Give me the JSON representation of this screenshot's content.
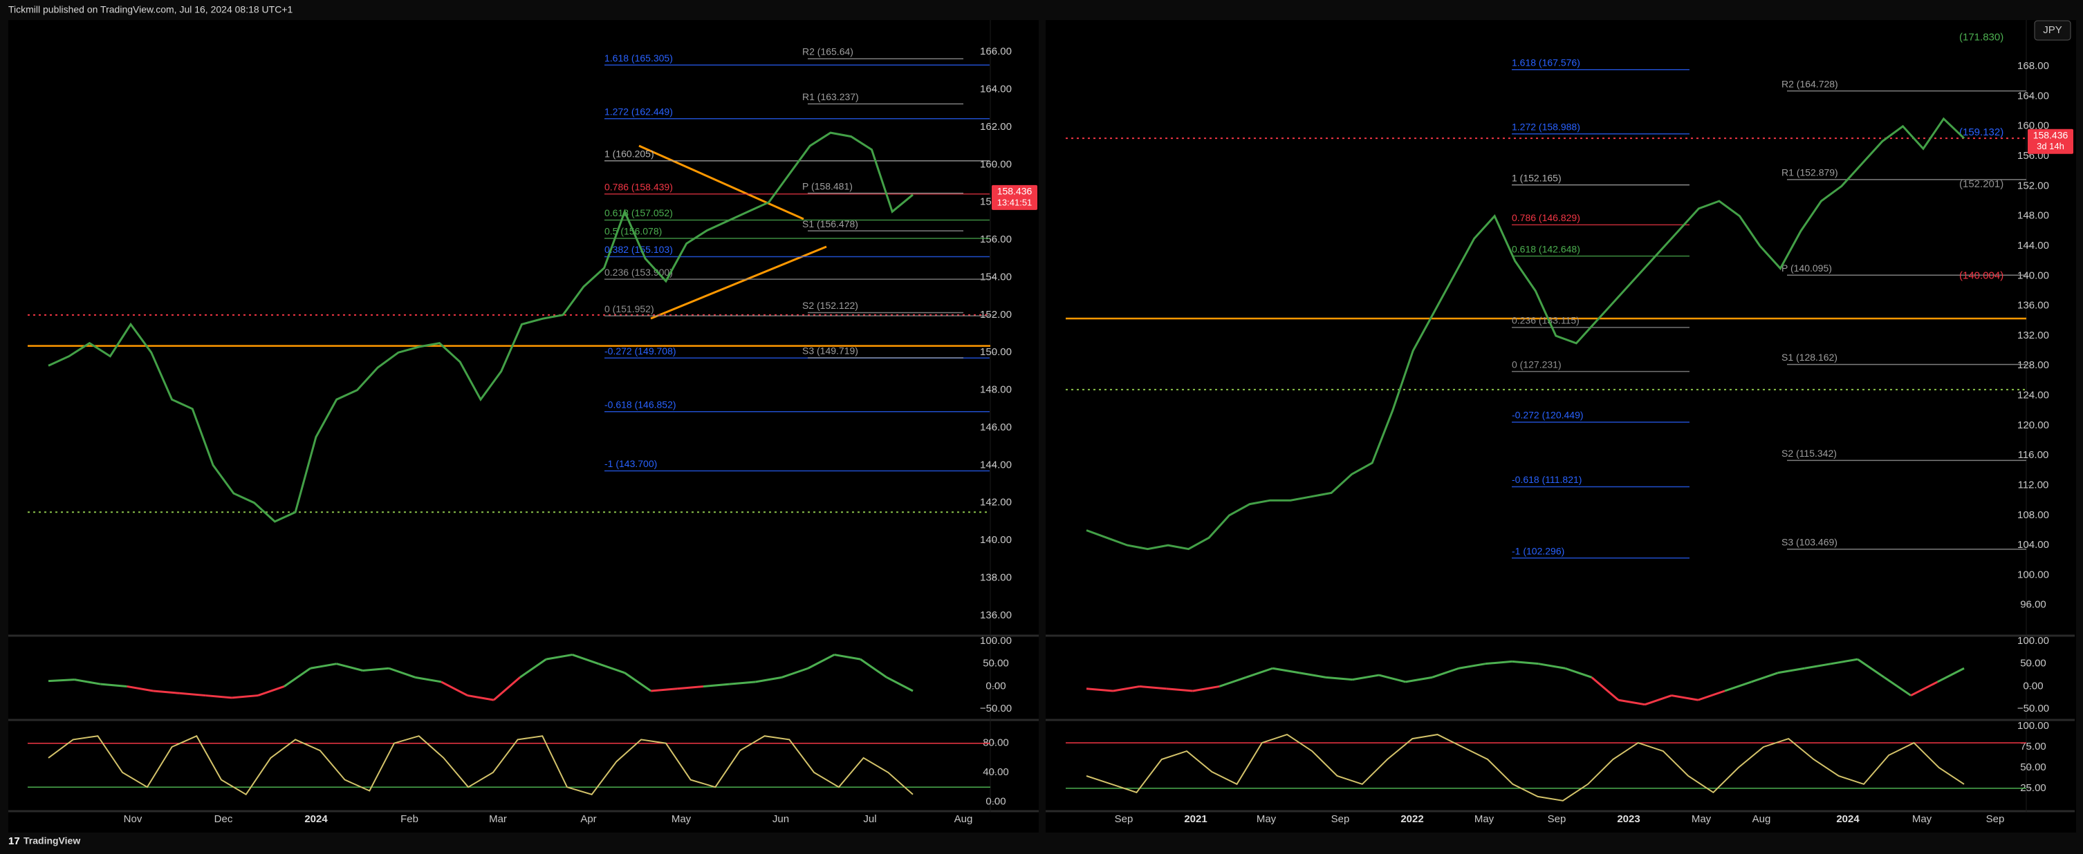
{
  "header": {
    "title": "Tickmill published on TradingView.com, Jul 16, 2024 08:18 UTC+1"
  },
  "footer": {
    "brand": "TradingView"
  },
  "currency": "JPY",
  "panes": [
    {
      "type": "line",
      "price": {
        "ylim": [
          135,
          167.7
        ],
        "yticks": [
          {
            "value": 166,
            "label": "166.00"
          },
          {
            "value": 164,
            "label": "164.00"
          },
          {
            "value": 162,
            "label": "162.00"
          },
          {
            "value": 160,
            "label": "160.00"
          },
          {
            "value": 158,
            "label": "158.00"
          },
          {
            "value": 156,
            "label": "156.00"
          },
          {
            "value": 154,
            "label": "154.00"
          },
          {
            "value": 152,
            "label": "152.00"
          },
          {
            "value": 150,
            "label": "150.00"
          },
          {
            "value": 148,
            "label": "148.00"
          },
          {
            "value": 146,
            "label": "146.00"
          },
          {
            "value": 144,
            "label": "144.00"
          },
          {
            "value": 142,
            "label": "142.00"
          },
          {
            "value": 140,
            "label": "140.00"
          },
          {
            "value": 138,
            "label": "138.00"
          },
          {
            "value": 136,
            "label": "136.00"
          }
        ],
        "color": "#43a047",
        "values": [
          149.3,
          149.8,
          150.5,
          149.8,
          151.5,
          150.0,
          147.5,
          147.0,
          144.0,
          142.5,
          142.0,
          141.0,
          141.5,
          145.5,
          147.5,
          148.0,
          149.2,
          150.0,
          150.3,
          150.5,
          149.5,
          147.5,
          149.0,
          151.5,
          151.8,
          152.0,
          153.5,
          154.5,
          157.5,
          155.0,
          153.8,
          155.8,
          156.5,
          157.0,
          157.5,
          158.0,
          159.5,
          161.0,
          161.7,
          161.5,
          160.8,
          157.5,
          158.4
        ]
      },
      "current": {
        "value": 158.436,
        "countdown": "13:41:51"
      },
      "levels": [
        {
          "kind": "fib",
          "label": "1.618 (165.305)",
          "value": 165.305,
          "color": "#2962ff"
        },
        {
          "kind": "fib",
          "label": "1.272 (162.449)",
          "value": 162.449,
          "color": "#2962ff"
        },
        {
          "kind": "fib",
          "label": "1 (160.205)",
          "value": 160.205,
          "color": "#b0b0b0"
        },
        {
          "kind": "fib",
          "label": "0.786 (158.439)",
          "value": 158.439,
          "color": "#f23645"
        },
        {
          "kind": "fib",
          "label": "0.618 (157.052)",
          "value": 157.052,
          "color": "#4caf50"
        },
        {
          "kind": "fib",
          "label": "0.5 (156.078)",
          "value": 156.078,
          "color": "#4caf50"
        },
        {
          "kind": "fib",
          "label": "0.382 (155.103)",
          "value": 155.103,
          "color": "#2962ff"
        },
        {
          "kind": "fib",
          "label": "0.236 (153.900)",
          "value": 153.9,
          "color": "#909090"
        },
        {
          "kind": "fib",
          "label": "0 (151.952)",
          "value": 151.952,
          "color": "#909090"
        },
        {
          "kind": "fib",
          "label": "-0.272 (149.708)",
          "value": 149.708,
          "color": "#2962ff"
        },
        {
          "kind": "fib",
          "label": "-0.618 (146.852)",
          "value": 146.852,
          "color": "#2962ff"
        },
        {
          "kind": "fib",
          "label": "-1 (143.700)",
          "value": 143.7,
          "color": "#2962ff"
        },
        {
          "kind": "pivot",
          "label": "R2 (165.64)",
          "value": 165.64,
          "color": "#9e9e9e"
        },
        {
          "kind": "pivot",
          "label": "R1 (163.237)",
          "value": 163.237,
          "color": "#9e9e9e"
        },
        {
          "kind": "pivot",
          "label": "P (158.481)",
          "value": 158.481,
          "color": "#9e9e9e"
        },
        {
          "kind": "pivot",
          "label": "S1 (156.478)",
          "value": 156.478,
          "color": "#9e9e9e"
        },
        {
          "kind": "pivot",
          "label": "S2 (152.122)",
          "value": 152.122,
          "color": "#9e9e9e"
        },
        {
          "kind": "pivot",
          "label": "S3 (149.719)",
          "value": 149.719,
          "color": "#9e9e9e"
        }
      ],
      "hlines": [
        {
          "value": 150.35,
          "color": "#ff9800",
          "style": "solid"
        },
        {
          "value": 152.0,
          "color": "#f23645",
          "style": "dotted"
        },
        {
          "value": 141.5,
          "color": "#8bc34a",
          "style": "dotted"
        }
      ],
      "osc1": {
        "ylim": [
          -71,
          109
        ],
        "yticks": [
          {
            "value": 100,
            "label": "100.00"
          },
          {
            "value": 50,
            "label": "50.00"
          },
          {
            "value": 0,
            "label": "0.00"
          },
          {
            "value": -50,
            "label": "−50.00"
          }
        ],
        "up_color": "#4caf50",
        "down_color": "#f23645",
        "values": [
          12,
          15,
          5,
          0,
          -10,
          -15,
          -20,
          -25,
          -20,
          0,
          40,
          50,
          35,
          40,
          20,
          10,
          -20,
          -30,
          20,
          60,
          70,
          50,
          30,
          -10,
          -5,
          0,
          5,
          10,
          20,
          40,
          70,
          60,
          20,
          -10
        ]
      },
      "osc2": {
        "ylim": [
          -11,
          110
        ],
        "yticks": [
          {
            "value": 80,
            "label": "80.00"
          },
          {
            "value": 40,
            "label": "40.00"
          },
          {
            "value": 0,
            "label": "0.00"
          }
        ],
        "color": "#d4c36a",
        "levels": [
          {
            "value": 80,
            "color": "#f23645"
          },
          {
            "value": 20,
            "color": "#4caf50"
          }
        ],
        "values": [
          60,
          85,
          90,
          40,
          20,
          75,
          90,
          30,
          10,
          60,
          85,
          70,
          30,
          15,
          80,
          90,
          60,
          20,
          40,
          85,
          90,
          20,
          10,
          55,
          85,
          80,
          30,
          20,
          70,
          90,
          85,
          40,
          20,
          60,
          40,
          10
        ]
      },
      "time_labels": [
        "Nov",
        "Dec",
        "2024",
        "Feb",
        "Mar",
        "Apr",
        "May",
        "Jun",
        "Jul",
        "Aug"
      ]
    },
    {
      "type": "line",
      "price": {
        "ylim": [
          92.1,
          174.2
        ],
        "yticks": [
          {
            "value": 168,
            "label": "168.00"
          },
          {
            "value": 164,
            "label": "164.00"
          },
          {
            "value": 160,
            "label": "160.00"
          },
          {
            "value": 156,
            "label": "156.00"
          },
          {
            "value": 152,
            "label": "152.00"
          },
          {
            "value": 148,
            "label": "148.00"
          },
          {
            "value": 144,
            "label": "144.00"
          },
          {
            "value": 140,
            "label": "140.00"
          },
          {
            "value": 136,
            "label": "136.00"
          },
          {
            "value": 132,
            "label": "132.00"
          },
          {
            "value": 128,
            "label": "128.00"
          },
          {
            "value": 124,
            "label": "124.00"
          },
          {
            "value": 120,
            "label": "120.00"
          },
          {
            "value": 116,
            "label": "116.00"
          },
          {
            "value": 112,
            "label": "112.00"
          },
          {
            "value": 108,
            "label": "108.00"
          },
          {
            "value": 104,
            "label": "104.00"
          },
          {
            "value": 100,
            "label": "100.00"
          },
          {
            "value": 96,
            "label": "96.00"
          }
        ],
        "color": "#43a047",
        "values": [
          106,
          105,
          104,
          103.5,
          104,
          103.5,
          105,
          108,
          109.5,
          110,
          110,
          110.5,
          111,
          113.5,
          115,
          122,
          130,
          135,
          140,
          145,
          148,
          142,
          138,
          132,
          131,
          134,
          137,
          140,
          143,
          146,
          149,
          150,
          148,
          144,
          141,
          146,
          150,
          152,
          155,
          158,
          160,
          157,
          161,
          158.4
        ]
      },
      "current": {
        "value": 158.436,
        "countdown": "3d 14h"
      },
      "levels": [
        {
          "kind": "fib",
          "label": "1.618 (167.576)",
          "value": 167.576,
          "color": "#2962ff"
        },
        {
          "kind": "fib",
          "label": "1.272 (158.988)",
          "value": 158.988,
          "color": "#2962ff"
        },
        {
          "kind": "fib",
          "label": "1 (152.165)",
          "value": 152.165,
          "color": "#b0b0b0"
        },
        {
          "kind": "fib",
          "label": "0.786 (146.829)",
          "value": 146.829,
          "color": "#f23645"
        },
        {
          "kind": "fib",
          "label": "0.618 (142.648)",
          "value": 142.648,
          "color": "#4caf50"
        },
        {
          "kind": "fib",
          "label": "0.236 (133.115)",
          "value": 133.115,
          "color": "#909090"
        },
        {
          "kind": "fib",
          "label": "0 (127.231)",
          "value": 127.231,
          "color": "#909090"
        },
        {
          "kind": "fib",
          "label": "-0.272 (120.449)",
          "value": 120.449,
          "color": "#2962ff"
        },
        {
          "kind": "fib",
          "label": "-0.618 (111.821)",
          "value": 111.821,
          "color": "#2962ff"
        },
        {
          "kind": "fib",
          "label": "-1 (102.296)",
          "value": 102.296,
          "color": "#2962ff"
        },
        {
          "kind": "pivot",
          "label": "R2 (164.728)",
          "value": 164.728,
          "color": "#9e9e9e"
        },
        {
          "kind": "pivot",
          "label": "R1 (152.879)",
          "value": 152.879,
          "color": "#9e9e9e"
        },
        {
          "kind": "pivot",
          "label": "P (140.095)",
          "value": 140.095,
          "color": "#9e9e9e"
        },
        {
          "kind": "pivot",
          "label": "S1 (128.162)",
          "value": 128.162,
          "color": "#9e9e9e"
        },
        {
          "kind": "pivot",
          "label": "S2 (115.342)",
          "value": 115.342,
          "color": "#9e9e9e"
        },
        {
          "kind": "pivot",
          "label": "S3 (103.469)",
          "value": 103.469,
          "color": "#9e9e9e"
        },
        {
          "kind": "tag",
          "label": "(171.830)",
          "value": 171.83,
          "color": "#4caf50"
        },
        {
          "kind": "tag",
          "label": "(159.132)",
          "value": 159.132,
          "color": "#2962ff"
        },
        {
          "kind": "tag",
          "label": "(152.201)",
          "value": 152.201,
          "color": "#909090"
        },
        {
          "kind": "tag",
          "label": "(140.004)",
          "value": 140.004,
          "color": "#f23645"
        }
      ],
      "hlines": [
        {
          "value": 134.3,
          "color": "#ff9800",
          "style": "solid"
        },
        {
          "value": 158.4,
          "color": "#f23645",
          "style": "dotted"
        },
        {
          "value": 124.8,
          "color": "#8bc34a",
          "style": "dotted"
        }
      ],
      "osc1": {
        "ylim": [
          -71,
          109
        ],
        "yticks": [
          {
            "value": 100,
            "label": "100.00"
          },
          {
            "value": 50,
            "label": "50.00"
          },
          {
            "value": 0,
            "label": "0.00"
          },
          {
            "value": -50,
            "label": "−50.00"
          }
        ],
        "up_color": "#4caf50",
        "down_color": "#f23645",
        "values": [
          -5,
          -10,
          0,
          -5,
          -10,
          0,
          20,
          40,
          30,
          20,
          15,
          25,
          10,
          20,
          40,
          50,
          55,
          50,
          40,
          20,
          -30,
          -40,
          -20,
          -30,
          -10,
          10,
          30,
          40,
          50,
          60,
          20,
          -20,
          10,
          40
        ]
      },
      "osc2": {
        "ylim": [
          -1,
          106
        ],
        "yticks": [
          {
            "value": 100,
            "label": "100.00"
          },
          {
            "value": 75,
            "label": "75.00"
          },
          {
            "value": 50,
            "label": "50.00"
          },
          {
            "value": 25,
            "label": "25.00"
          }
        ],
        "color": "#d4c36a",
        "levels": [
          {
            "value": 80,
            "color": "#f23645"
          },
          {
            "value": 25,
            "color": "#4caf50"
          }
        ],
        "values": [
          40,
          30,
          20,
          60,
          70,
          45,
          30,
          80,
          90,
          70,
          40,
          30,
          60,
          85,
          90,
          75,
          60,
          30,
          15,
          10,
          30,
          60,
          80,
          70,
          40,
          20,
          50,
          75,
          85,
          60,
          40,
          30,
          65,
          80,
          50,
          30
        ]
      },
      "time_labels": [
        "Sep",
        "2021",
        "May",
        "Sep",
        "2022",
        "May",
        "Sep",
        "2023",
        "May",
        "Aug",
        "2024",
        "May",
        "Sep"
      ]
    }
  ]
}
